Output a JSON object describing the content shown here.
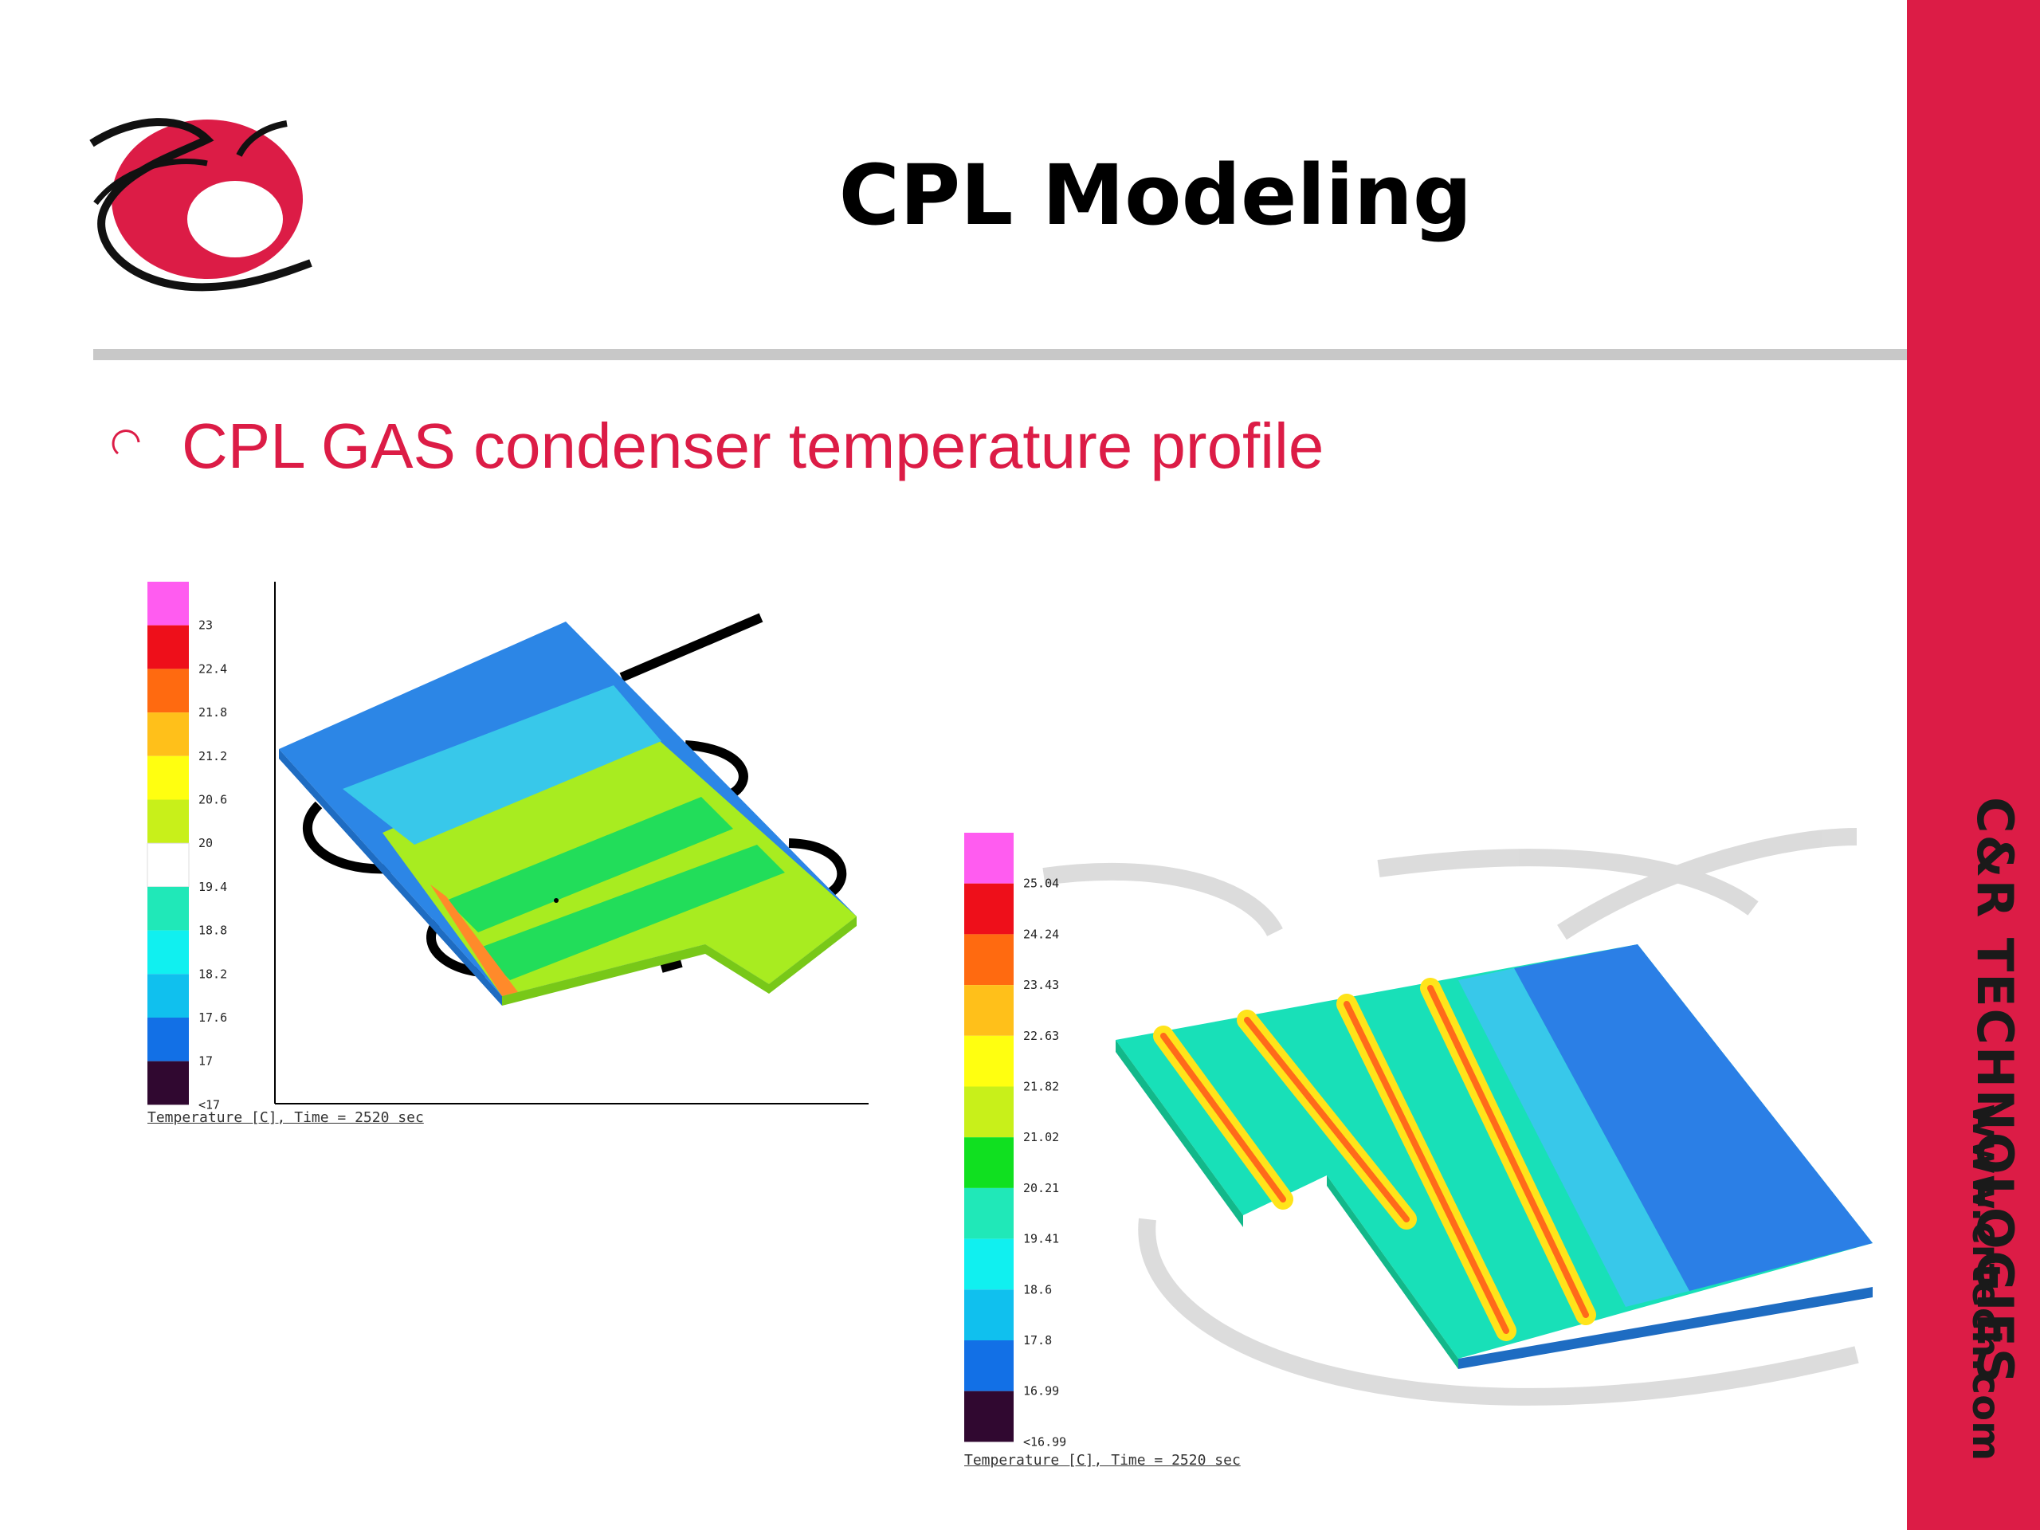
{
  "slide": {
    "title": "CPL Modeling",
    "bullet": "CPL GAS condenser temperature profile"
  },
  "brand": {
    "name": "C&R TECHNOLOGIES",
    "url": "www.crtech.com",
    "accent_color": "#dc1c46"
  },
  "figures": [
    {
      "caption": "Temperature [C], Time = 2520 sec",
      "legend_labels": [
        "23",
        "22.4",
        "21.8",
        "21.2",
        "20.6",
        "20",
        "19.4",
        "18.8",
        "18.2",
        "17.6",
        "17",
        "<17"
      ]
    },
    {
      "caption": "Temperature [C], Time = 2520 sec",
      "legend_labels": [
        "25.04",
        "24.24",
        "23.43",
        "22.63",
        "21.82",
        "21.02",
        "20.21",
        "19.41",
        "18.6",
        "17.8",
        "16.99",
        "<16.99"
      ]
    }
  ],
  "icons": {
    "logo": "cr-logo",
    "bullet": "open-circle-bullet-icon"
  }
}
